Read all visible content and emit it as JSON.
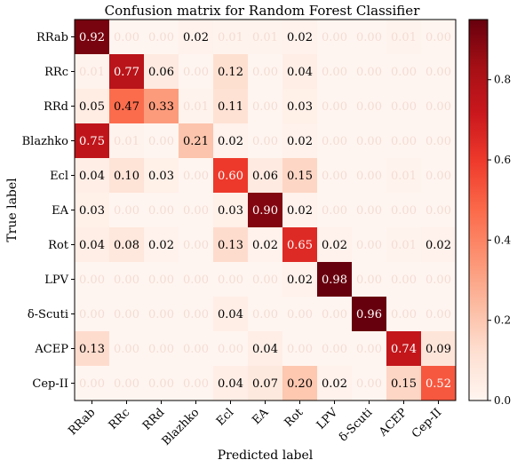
{
  "chart_data": {
    "type": "heatmap",
    "title": "Confusion matrix for Random Forest Classifier",
    "xlabel": "Predicted label",
    "ylabel": "True label",
    "categories": [
      "RRab",
      "RRc",
      "RRd",
      "Blazhko",
      "Ecl",
      "EA",
      "Rot",
      "LPV",
      "δ-Scuti",
      "ACEP",
      "Cep-II"
    ],
    "matrix": [
      [
        0.92,
        0.0,
        0.0,
        0.02,
        0.01,
        0.01,
        0.02,
        0.0,
        0.0,
        0.01,
        0.0
      ],
      [
        0.01,
        0.77,
        0.06,
        0.0,
        0.12,
        0.0,
        0.04,
        0.0,
        0.0,
        0.0,
        0.0
      ],
      [
        0.05,
        0.47,
        0.33,
        0.01,
        0.11,
        0.0,
        0.03,
        0.0,
        0.0,
        0.0,
        0.0
      ],
      [
        0.75,
        0.01,
        0.0,
        0.21,
        0.02,
        0.0,
        0.02,
        0.0,
        0.0,
        0.0,
        0.0
      ],
      [
        0.04,
        0.1,
        0.03,
        0.0,
        0.6,
        0.06,
        0.15,
        0.0,
        0.0,
        0.01,
        0.0
      ],
      [
        0.03,
        0.0,
        0.0,
        0.0,
        0.03,
        0.9,
        0.02,
        0.0,
        0.0,
        0.0,
        0.0
      ],
      [
        0.04,
        0.08,
        0.02,
        0.0,
        0.13,
        0.02,
        0.65,
        0.02,
        0.0,
        0.01,
        0.02
      ],
      [
        0.0,
        0.0,
        0.0,
        0.0,
        0.0,
        0.0,
        0.02,
        0.98,
        0.0,
        0.0,
        0.0
      ],
      [
        0.0,
        0.0,
        0.0,
        0.0,
        0.04,
        0.0,
        0.0,
        0.0,
        0.96,
        0.0,
        0.0
      ],
      [
        0.13,
        0.0,
        0.0,
        0.0,
        0.0,
        0.04,
        0.0,
        0.0,
        0.0,
        0.74,
        0.09
      ],
      [
        0.0,
        0.0,
        0.0,
        0.0,
        0.04,
        0.07,
        0.2,
        0.02,
        0.0,
        0.15,
        0.52
      ]
    ],
    "colorbar": {
      "range": [
        0.0,
        0.95
      ],
      "ticks": [
        "0.0",
        "0.2",
        "0.4",
        "0.6",
        "0.8"
      ]
    },
    "colormap": "Reds",
    "grid": false
  }
}
